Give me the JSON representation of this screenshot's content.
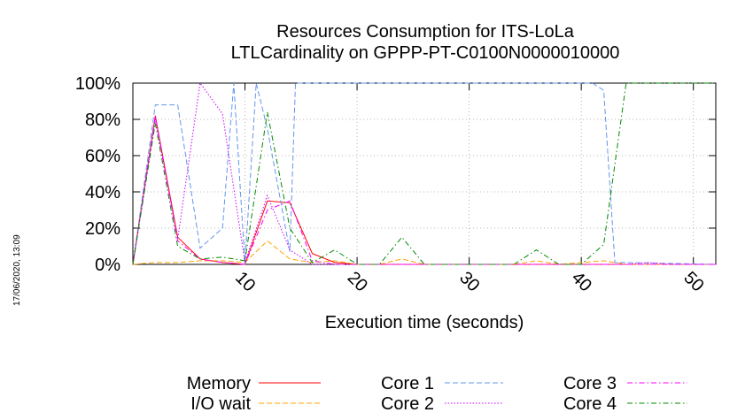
{
  "chart_data": {
    "type": "line",
    "title_line1": "Resources Consumption for ITS-LoLa",
    "title_line2": "LTLCardinality on GPPP-PT-C0100N0000010000",
    "xlabel": "Execution time (seconds)",
    "ylabel": "",
    "xlim": [
      0,
      52
    ],
    "ylim": [
      0,
      100
    ],
    "x_ticks": [
      10,
      20,
      30,
      40,
      50
    ],
    "y_ticks": [
      "0%",
      "20%",
      "40%",
      "60%",
      "80%",
      "100%"
    ],
    "grid": true,
    "legend_position": "bottom",
    "timestamp": "17/06/2020, 13:09",
    "series": [
      {
        "name": "Memory",
        "color": "#ff0000",
        "dash": "solid",
        "points": [
          [
            0,
            0
          ],
          [
            2,
            82
          ],
          [
            4,
            15
          ],
          [
            6,
            3
          ],
          [
            8,
            1
          ],
          [
            10,
            0
          ],
          [
            12,
            35
          ],
          [
            14,
            34
          ],
          [
            16,
            6
          ],
          [
            18,
            1
          ],
          [
            20,
            0
          ],
          [
            52,
            0
          ]
        ]
      },
      {
        "name": "I/O wait",
        "color": "#ffa500",
        "dash": "dashed",
        "points": [
          [
            0,
            0
          ],
          [
            2,
            1
          ],
          [
            4,
            1
          ],
          [
            6,
            2
          ],
          [
            8,
            2
          ],
          [
            10,
            1
          ],
          [
            12,
            13
          ],
          [
            14,
            3
          ],
          [
            16,
            1
          ],
          [
            18,
            2
          ],
          [
            20,
            0
          ],
          [
            22,
            0
          ],
          [
            24,
            3
          ],
          [
            26,
            0
          ],
          [
            34,
            0
          ],
          [
            36,
            2
          ],
          [
            38,
            0
          ],
          [
            42,
            2
          ],
          [
            44,
            0
          ],
          [
            52,
            0
          ]
        ]
      },
      {
        "name": "Core 1",
        "color": "#6495ed",
        "dash": "dashed",
        "points": [
          [
            0,
            0
          ],
          [
            2,
            88
          ],
          [
            4,
            88
          ],
          [
            6,
            9
          ],
          [
            8,
            20
          ],
          [
            9,
            100
          ],
          [
            10,
            0
          ],
          [
            11,
            100
          ],
          [
            12,
            75
          ],
          [
            14,
            7
          ],
          [
            14.5,
            100
          ],
          [
            41,
            100
          ],
          [
            42,
            96
          ],
          [
            43,
            1
          ],
          [
            44,
            1
          ],
          [
            52,
            0
          ]
        ]
      },
      {
        "name": "Core 2",
        "color": "#cc00ff",
        "dash": "dotted",
        "points": [
          [
            0,
            0
          ],
          [
            2,
            80
          ],
          [
            4,
            14
          ],
          [
            6,
            100
          ],
          [
            8,
            83
          ],
          [
            10,
            1
          ],
          [
            12,
            38
          ],
          [
            14,
            8
          ],
          [
            16,
            0
          ],
          [
            44,
            0
          ],
          [
            46,
            1
          ],
          [
            48,
            0
          ],
          [
            52,
            0
          ]
        ]
      },
      {
        "name": "Core 3",
        "color": "#ff00ff",
        "dash": "dashdot",
        "points": [
          [
            0,
            0
          ],
          [
            2,
            82
          ],
          [
            4,
            13
          ],
          [
            6,
            3
          ],
          [
            8,
            1
          ],
          [
            10,
            0
          ],
          [
            12,
            30
          ],
          [
            14,
            35
          ],
          [
            16,
            2
          ],
          [
            18,
            0
          ],
          [
            52,
            0
          ]
        ]
      },
      {
        "name": "Core 4",
        "color": "#008800",
        "dash": "dashdot",
        "points": [
          [
            0,
            0
          ],
          [
            2,
            78
          ],
          [
            4,
            10
          ],
          [
            6,
            3
          ],
          [
            8,
            4
          ],
          [
            10,
            2
          ],
          [
            12,
            84
          ],
          [
            14,
            20
          ],
          [
            16,
            1
          ],
          [
            18,
            8
          ],
          [
            20,
            0
          ],
          [
            22,
            0
          ],
          [
            24,
            15
          ],
          [
            26,
            0
          ],
          [
            34,
            0
          ],
          [
            36,
            8
          ],
          [
            38,
            0
          ],
          [
            40,
            0
          ],
          [
            42,
            11
          ],
          [
            44,
            100
          ],
          [
            52,
            100
          ]
        ]
      }
    ]
  }
}
